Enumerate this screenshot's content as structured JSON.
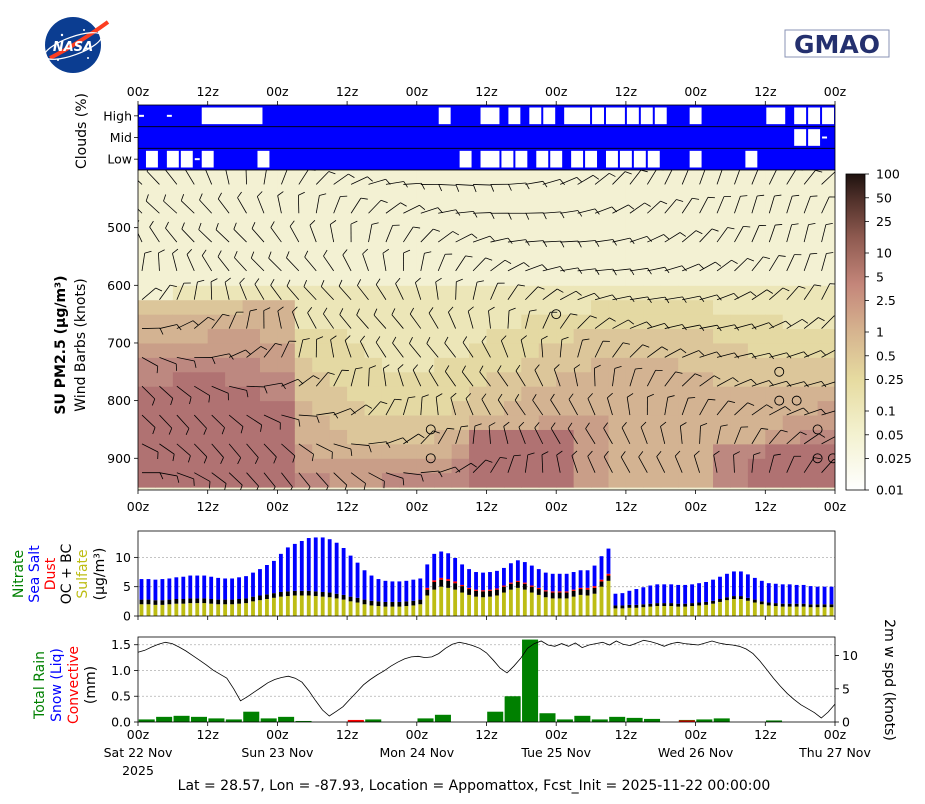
{
  "logos": {
    "nasa": "NASA",
    "gmao": "GMAO"
  },
  "colors": {
    "cloud": "#0000ff",
    "nitrate": "#008000",
    "seasalt": "#0000ff",
    "dust": "#ff0000",
    "ocbc": "#000000",
    "sulfate": "#bdbd14",
    "rain": "#008000",
    "convective": "#ff0000"
  },
  "footer": "Lat = 28.57, Lon = -87.93, Location = Appomattox, Fcst_Init = 2025-11-22 00:00:00",
  "chart_data": [
    {
      "type": "heatmap",
      "name": "clouds",
      "ylabel": "Clouds (%)",
      "rows": [
        "High",
        "Mid",
        "Low"
      ],
      "time_ticks": [
        "00z",
        "12z",
        "00z",
        "12z",
        "00z",
        "12z",
        "00z",
        "12z",
        "00z",
        "12z",
        "00z"
      ],
      "note": "mostly 100% cover; white gaps mark low cloud cover",
      "gaps": {
        "High": [
          [
            0,
            1
          ],
          [
            4,
            5
          ],
          [
            9,
            18
          ],
          [
            43,
            45
          ],
          [
            49,
            52
          ],
          [
            53,
            55
          ],
          [
            56,
            58
          ],
          [
            58,
            60
          ],
          [
            61,
            65
          ],
          [
            65,
            67
          ],
          [
            67,
            70
          ],
          [
            70,
            72
          ],
          [
            72,
            74
          ],
          [
            74,
            76
          ],
          [
            79,
            81
          ],
          [
            90,
            93
          ],
          [
            94,
            96
          ],
          [
            96,
            98
          ],
          [
            98,
            100
          ]
        ],
        "Mid": [
          [
            94,
            96
          ],
          [
            96,
            98
          ],
          [
            98,
            99
          ]
        ],
        "Low": [
          [
            1,
            3
          ],
          [
            4,
            6
          ],
          [
            6,
            8
          ],
          [
            8,
            9
          ],
          [
            9,
            11
          ],
          [
            17,
            19
          ],
          [
            46,
            48
          ],
          [
            49,
            52
          ],
          [
            52,
            54
          ],
          [
            54,
            56
          ],
          [
            57,
            59
          ],
          [
            59,
            61
          ],
          [
            62,
            64
          ],
          [
            64,
            66
          ],
          [
            67,
            69
          ],
          [
            69,
            71
          ],
          [
            71,
            73
          ],
          [
            73,
            75
          ],
          [
            79,
            81
          ],
          [
            87,
            89
          ]
        ]
      }
    },
    {
      "type": "heatmap",
      "name": "su_pm25_profile",
      "ylabel": "SU PM2.5 (μg/m³)",
      "ylabel2": "Wind Barbs (knots)",
      "y_ticks": [
        "500",
        "600",
        "700",
        "800",
        "900"
      ],
      "ylim": [
        955,
        400
      ],
      "time_ticks": [
        "00z",
        "12z",
        "00z",
        "12z",
        "00z",
        "12z",
        "00z",
        "12z",
        "00z",
        "12z",
        "00z"
      ],
      "colorbar_ticks": [
        "100",
        "50",
        "25",
        "10",
        "5",
        "2.5",
        "1",
        "0.5",
        "0.25",
        "0.1",
        "0.05",
        "0.025",
        "0.01"
      ],
      "colorbar_range": [
        0.01,
        100
      ]
    },
    {
      "type": "bar",
      "name": "aerosol_species",
      "stacked": true,
      "ylabels": [
        "Nitrate",
        "Sea Salt",
        "Dust",
        "OC + BC",
        "Sulfate",
        "(μg/m³)"
      ],
      "y_ticks": [
        "0",
        "5",
        "10"
      ],
      "ylim": [
        0,
        14.5
      ],
      "n_bars": 100,
      "series": [
        {
          "name": "Sulfate",
          "values": [
            2,
            2,
            1.9,
            1.9,
            2,
            2.1,
            2.1,
            2.2,
            2.2,
            2.2,
            2.1,
            2,
            2,
            2,
            2.1,
            2.2,
            2.5,
            2.7,
            2.9,
            3.1,
            3.3,
            3.4,
            3.5,
            3.5,
            3.5,
            3.4,
            3.3,
            3.2,
            3,
            2.8,
            2.5,
            2.3,
            2,
            1.8,
            1.7,
            1.6,
            1.6,
            1.6,
            1.7,
            1.8,
            2,
            3.5,
            4.5,
            5,
            4.8,
            4.5,
            4,
            3.6,
            3.3,
            3.2,
            3.3,
            3.5,
            4,
            4.5,
            4.8,
            4.5,
            4,
            3.6,
            3.2,
            3,
            3,
            3,
            3.3,
            3.6,
            3.5,
            3.8,
            5,
            6,
            1.3,
            1.3,
            1.4,
            1.4,
            1.5,
            1.6,
            1.7,
            1.7,
            1.7,
            1.6,
            1.6,
            1.7,
            1.8,
            1.9,
            2.1,
            2.4,
            2.7,
            2.9,
            2.9,
            2.6,
            2.3,
            2,
            1.8,
            1.7,
            1.6,
            1.6,
            1.6,
            1.6,
            1.5,
            1.5,
            1.5,
            1.5
          ]
        },
        {
          "name": "OC + BC",
          "values": [
            0.8,
            0.8,
            0.8,
            0.8,
            0.8,
            0.8,
            0.8,
            0.8,
            0.8,
            0.8,
            0.8,
            0.8,
            0.8,
            0.8,
            0.8,
            0.8,
            0.8,
            0.8,
            0.8,
            0.8,
            0.8,
            0.8,
            0.8,
            0.8,
            0.8,
            0.8,
            0.8,
            0.8,
            0.8,
            0.8,
            0.8,
            0.8,
            0.8,
            0.8,
            0.8,
            0.8,
            0.8,
            0.8,
            0.8,
            0.8,
            0.8,
            1,
            1.3,
            1.2,
            1.2,
            1.1,
            1.1,
            1,
            1,
            1,
            1,
            1,
            1,
            1,
            1,
            1,
            1,
            1,
            1,
            1,
            1,
            1,
            1,
            1,
            1,
            1,
            0.9,
            0.9,
            0.5,
            0.5,
            0.5,
            0.5,
            0.5,
            0.5,
            0.5,
            0.5,
            0.5,
            0.5,
            0.5,
            0.5,
            0.5,
            0.5,
            0.5,
            0.5,
            0.5,
            0.5,
            0.5,
            0.5,
            0.5,
            0.5,
            0.5,
            0.5,
            0.5,
            0.5,
            0.5,
            0.5,
            0.5,
            0.5,
            0.5,
            0.5
          ]
        },
        {
          "name": "Dust",
          "values": [
            0,
            0,
            0,
            0,
            0,
            0,
            0,
            0,
            0,
            0,
            0,
            0,
            0,
            0,
            0,
            0,
            0,
            0,
            0,
            0,
            0,
            0,
            0,
            0,
            0,
            0,
            0,
            0,
            0,
            0,
            0,
            0,
            0,
            0,
            0,
            0,
            0,
            0,
            0,
            0,
            0,
            0.3,
            0.3,
            0.3,
            0.3,
            0.3,
            0.2,
            0.2,
            0.2,
            0.2,
            0.2,
            0.2,
            0.2,
            0.2,
            0.2,
            0.2,
            0.2,
            0.2,
            0.2,
            0.2,
            0.2,
            0.2,
            0.2,
            0.2,
            0.3,
            0.3,
            0.3,
            0.3,
            0,
            0,
            0,
            0,
            0,
            0,
            0,
            0,
            0,
            0,
            0,
            0,
            0,
            0,
            0,
            0,
            0,
            0,
            0,
            0,
            0,
            0,
            0,
            0,
            0,
            0,
            0,
            0,
            0,
            0,
            0,
            0
          ]
        },
        {
          "name": "Sea Salt",
          "values": [
            3.5,
            3.5,
            3.5,
            3.6,
            3.6,
            3.7,
            3.8,
            3.9,
            3.9,
            3.9,
            3.8,
            3.7,
            3.6,
            3.6,
            3.7,
            3.8,
            4.1,
            4.5,
            5,
            5.5,
            6.5,
            7.5,
            8,
            8.5,
            9,
            9.2,
            9.3,
            9.1,
            8.7,
            8,
            7,
            6,
            5,
            4.3,
            3.8,
            3.6,
            3.5,
            3.5,
            3.5,
            3.6,
            3.6,
            4,
            4.5,
            4.5,
            4.4,
            4,
            3.5,
            3.2,
            3,
            3,
            3,
            3,
            3,
            3.3,
            3.5,
            3.5,
            3.4,
            3.2,
            3,
            3,
            3,
            3,
            3,
            3,
            3,
            3.5,
            4,
            4.3,
            2,
            2.1,
            2.4,
            2.7,
            2.9,
            3.1,
            3.2,
            3.2,
            3.2,
            3.2,
            3.2,
            3.2,
            3.3,
            3.4,
            3.6,
            3.8,
            4,
            4.2,
            4.2,
            4,
            3.7,
            3.5,
            3.3,
            3.3,
            3.3,
            3.3,
            3.2,
            3.2,
            3.1,
            3,
            3,
            3
          ]
        }
      ]
    },
    {
      "type": "bar",
      "name": "precipitation",
      "ylabels": [
        "Total Rain",
        "Snow (Liq)",
        "Convective",
        "(mm)"
      ],
      "y_ticks": [
        "0.0",
        "0.5",
        "1.0",
        "1.5"
      ],
      "ylim": [
        0,
        1.65
      ],
      "n_bars": 40,
      "series": [
        {
          "name": "Total Rain",
          "values": [
            0.05,
            0.1,
            0.12,
            0.1,
            0.07,
            0.05,
            0.2,
            0.07,
            0.1,
            0.02,
            0,
            0,
            0.02,
            0.05,
            0,
            0,
            0.07,
            0.14,
            0,
            0,
            0.2,
            0.5,
            1.6,
            0.17,
            0.05,
            0.12,
            0.05,
            0.1,
            0.08,
            0.06,
            0,
            0.04,
            0.05,
            0.07,
            0,
            0,
            0.03,
            0,
            0,
            0
          ]
        },
        {
          "name": "Convective",
          "values": [
            0,
            0,
            0,
            0,
            0,
            0,
            0,
            0,
            0,
            0,
            0,
            0,
            0.04,
            0,
            0,
            0,
            0,
            0,
            0,
            0,
            0,
            0,
            0,
            0,
            0,
            0,
            0,
            0,
            0,
            0,
            0,
            0.03,
            0,
            0,
            0,
            0,
            0,
            0,
            0,
            0
          ]
        }
      ],
      "secondary": {
        "name": "2m w spd",
        "ylabel": "2m w spd (knots)",
        "y_ticks": [
          "0",
          "5",
          "10"
        ],
        "ylim": [
          0,
          12.8
        ],
        "values": [
          10.5,
          10.8,
          11.3,
          11.7,
          12,
          11.8,
          11.3,
          10.7,
          10,
          9.3,
          8.6,
          7.8,
          7.2,
          6.6,
          5,
          3.2,
          3.8,
          4.5,
          5.2,
          5.9,
          6.4,
          6.7,
          6.9,
          6.6,
          6,
          4.7,
          3.2,
          1.8,
          0.9,
          1.6,
          2.3,
          3.4,
          4.5,
          5.6,
          6.4,
          7.1,
          7.7,
          8.4,
          9,
          9.5,
          9.8,
          9.9,
          9.7,
          9.8,
          10.3,
          11.1,
          11.7,
          12,
          11.8,
          11.5,
          11.1,
          10.4,
          9.3,
          8.1,
          7.4,
          8.4,
          9.6,
          11.1,
          11.8,
          12.2,
          11.6,
          11.4,
          11.8,
          11.4,
          11.9,
          11.2,
          11.6,
          11.8,
          12,
          11.6,
          12.2,
          11.7,
          11.5,
          11.9,
          12.3,
          12.1,
          11.8,
          11.4,
          11.8,
          12,
          11.8,
          11.7,
          11.6,
          11.9,
          12.2,
          11.9,
          11.7,
          11.6,
          11.4,
          11,
          10.3,
          9.2,
          7.9,
          6.6,
          5.4,
          4.3,
          3.4,
          2.6,
          2,
          1.4,
          0.6,
          1.5,
          2.7
        ]
      },
      "date_labels": [
        "Sat 22 Nov",
        "Sun 23 Nov",
        "Mon 24 Nov",
        "Tue 25 Nov",
        "Wed 26 Nov",
        "Thu 27 Nov"
      ],
      "year_label": "2025",
      "time_ticks": [
        "00z",
        "12z",
        "00z",
        "12z",
        "00z",
        "12z",
        "00z",
        "12z",
        "00z",
        "12z",
        "00z"
      ]
    }
  ]
}
